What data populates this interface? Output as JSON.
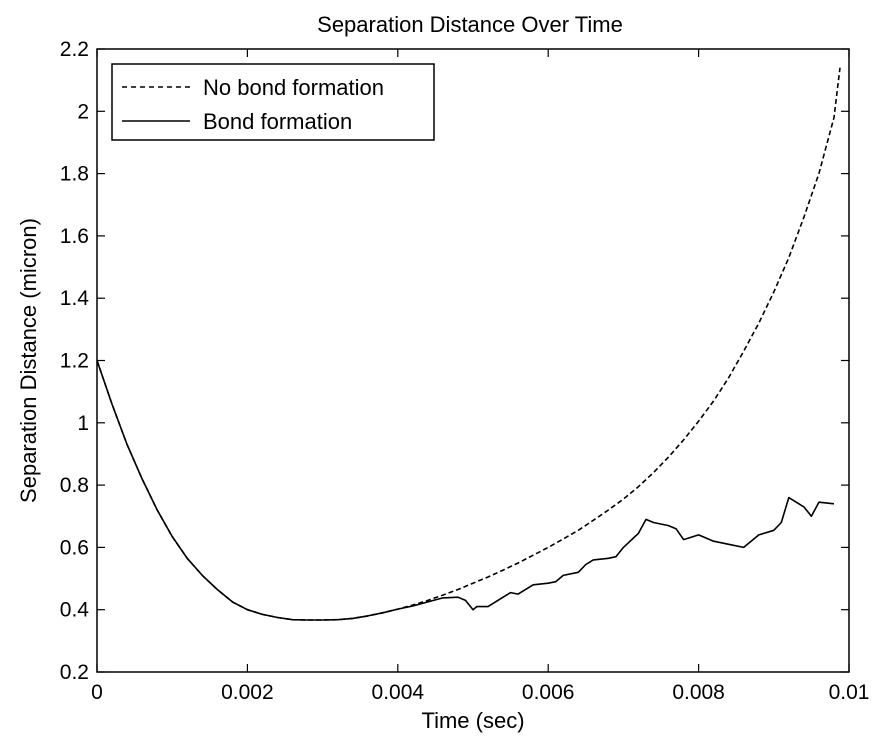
{
  "chart_data": {
    "type": "line",
    "title": "Separation Distance Over Time",
    "xlabel": "Time (sec)",
    "ylabel": "Separation Distance (micron)",
    "xlim": [
      0,
      0.01
    ],
    "ylim": [
      0.2,
      2.2
    ],
    "xticks": [
      0,
      0.002,
      0.004,
      0.006,
      0.008,
      0.01
    ],
    "xtick_labels": [
      "0",
      "0.002",
      "0.004",
      "0.006",
      "0.008",
      "0.01"
    ],
    "yticks": [
      0.2,
      0.4,
      0.6,
      0.8,
      1.0,
      1.2,
      1.4,
      1.6,
      1.8,
      2.0,
      2.2
    ],
    "ytick_labels": [
      "0.2",
      "0.4",
      "0.6",
      "0.8",
      "1",
      "1.2",
      "1.4",
      "1.6",
      "1.8",
      "2",
      "2.2"
    ],
    "grid": false,
    "legend_position": "top-left",
    "series": [
      {
        "name": "No bond formation",
        "style": "dashed",
        "color": "#000000",
        "x": [
          0,
          0.0002,
          0.0004,
          0.0006,
          0.0008,
          0.001,
          0.0012,
          0.0014,
          0.0016,
          0.0018,
          0.002,
          0.0022,
          0.0024,
          0.0026,
          0.0028,
          0.003,
          0.0032,
          0.0034,
          0.0036,
          0.0038,
          0.004,
          0.0042,
          0.0044,
          0.0046,
          0.0048,
          0.005,
          0.0052,
          0.0054,
          0.0056,
          0.0058,
          0.006,
          0.0062,
          0.0064,
          0.0066,
          0.0068,
          0.007,
          0.0072,
          0.0074,
          0.0076,
          0.0078,
          0.008,
          0.0082,
          0.0084,
          0.0086,
          0.0088,
          0.009,
          0.0092,
          0.0094,
          0.0096,
          0.0098,
          0.00988
        ],
        "y": [
          1.2,
          1.06,
          0.93,
          0.82,
          0.72,
          0.635,
          0.565,
          0.51,
          0.465,
          0.425,
          0.4,
          0.385,
          0.375,
          0.368,
          0.367,
          0.367,
          0.368,
          0.372,
          0.38,
          0.39,
          0.402,
          0.415,
          0.43,
          0.447,
          0.465,
          0.485,
          0.505,
          0.527,
          0.55,
          0.575,
          0.6,
          0.627,
          0.655,
          0.687,
          0.72,
          0.755,
          0.795,
          0.84,
          0.89,
          0.945,
          1.005,
          1.07,
          1.145,
          1.23,
          1.32,
          1.42,
          1.53,
          1.66,
          1.8,
          1.98,
          2.14
        ]
      },
      {
        "name": "Bond formation",
        "style": "solid",
        "color": "#000000",
        "x": [
          0,
          0.0002,
          0.0004,
          0.0006,
          0.0008,
          0.001,
          0.0012,
          0.0014,
          0.0016,
          0.0018,
          0.002,
          0.0022,
          0.0024,
          0.0026,
          0.0028,
          0.003,
          0.0032,
          0.0034,
          0.0036,
          0.0038,
          0.004,
          0.0042,
          0.0044,
          0.0046,
          0.0048,
          0.0049,
          0.005,
          0.00505,
          0.0052,
          0.0054,
          0.0055,
          0.0056,
          0.0058,
          0.006,
          0.0061,
          0.0062,
          0.0064,
          0.0065,
          0.0066,
          0.0068,
          0.0069,
          0.007,
          0.0072,
          0.0073,
          0.0074,
          0.0076,
          0.0077,
          0.0078,
          0.008,
          0.0082,
          0.0084,
          0.0086,
          0.0088,
          0.009,
          0.0091,
          0.0092,
          0.0094,
          0.0095,
          0.0096,
          0.0098
        ],
        "y": [
          1.2,
          1.06,
          0.93,
          0.82,
          0.72,
          0.635,
          0.565,
          0.51,
          0.465,
          0.425,
          0.4,
          0.385,
          0.375,
          0.368,
          0.367,
          0.367,
          0.368,
          0.372,
          0.38,
          0.39,
          0.402,
          0.412,
          0.425,
          0.438,
          0.44,
          0.43,
          0.4,
          0.41,
          0.41,
          0.44,
          0.455,
          0.45,
          0.48,
          0.485,
          0.49,
          0.51,
          0.52,
          0.545,
          0.56,
          0.565,
          0.57,
          0.6,
          0.645,
          0.69,
          0.68,
          0.67,
          0.66,
          0.625,
          0.64,
          0.62,
          0.61,
          0.6,
          0.64,
          0.655,
          0.68,
          0.76,
          0.73,
          0.7,
          0.745,
          0.74
        ]
      }
    ]
  }
}
